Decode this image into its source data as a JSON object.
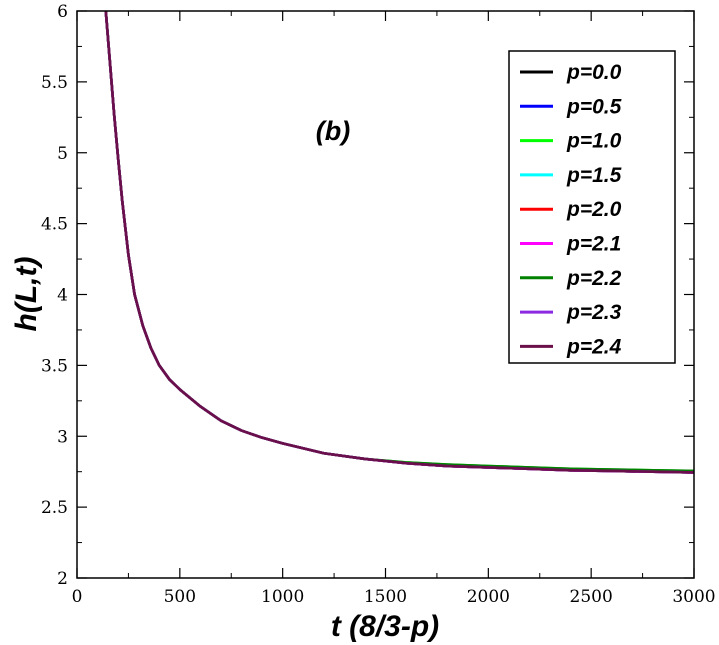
{
  "chart_data": {
    "type": "line",
    "title": "",
    "xlabel": "t (8/3-p)",
    "ylabel": "h(L,t)",
    "xlim": [
      0,
      3000
    ],
    "ylim": [
      2,
      6
    ],
    "xticks": [
      "0",
      "500",
      "1000",
      "1500",
      "2000",
      "2500",
      "3000"
    ],
    "yticks": [
      "2",
      "2.5",
      "3",
      "3.5",
      "4",
      "4.5",
      "5",
      "5.5",
      "6"
    ],
    "grid": false,
    "legend_position": "top-right",
    "annotation": "(b)",
    "x": [
      140,
      160,
      180,
      200,
      220,
      250,
      280,
      320,
      360,
      400,
      450,
      500,
      550,
      600,
      700,
      800,
      900,
      1000,
      1200,
      1400,
      1600,
      1800,
      2000,
      2200,
      2400,
      2600,
      2800,
      3000
    ],
    "series": [
      {
        "name": "p=0.0",
        "color": "#000000",
        "values": [
          6.02,
          5.64,
          5.28,
          4.96,
          4.66,
          4.28,
          4.0,
          3.78,
          3.62,
          3.5,
          3.4,
          3.33,
          3.27,
          3.21,
          3.11,
          3.04,
          2.99,
          2.95,
          2.88,
          2.84,
          2.81,
          2.79,
          2.78,
          2.77,
          2.76,
          2.755,
          2.75,
          2.745
        ]
      },
      {
        "name": "p=0.5",
        "color": "#0000ff",
        "values": [
          6.02,
          5.64,
          5.28,
          4.96,
          4.66,
          4.28,
          4.0,
          3.78,
          3.62,
          3.5,
          3.4,
          3.33,
          3.27,
          3.21,
          3.11,
          3.04,
          2.99,
          2.95,
          2.88,
          2.84,
          2.81,
          2.79,
          2.78,
          2.77,
          2.76,
          2.755,
          2.75,
          2.745
        ]
      },
      {
        "name": "p=1.0",
        "color": "#00ff00",
        "values": [
          6.02,
          5.64,
          5.28,
          4.96,
          4.66,
          4.28,
          4.0,
          3.78,
          3.62,
          3.5,
          3.4,
          3.33,
          3.27,
          3.21,
          3.11,
          3.04,
          2.99,
          2.95,
          2.88,
          2.84,
          2.815,
          2.8,
          2.79,
          2.78,
          2.77,
          2.765,
          2.76,
          2.755
        ]
      },
      {
        "name": "p=1.5",
        "color": "#00ffff",
        "values": [
          6.02,
          5.64,
          5.28,
          4.96,
          4.66,
          4.28,
          4.0,
          3.78,
          3.62,
          3.5,
          3.4,
          3.33,
          3.27,
          3.21,
          3.11,
          3.04,
          2.99,
          2.95,
          2.88,
          2.84,
          2.81,
          2.79,
          2.78,
          2.77,
          2.76,
          2.755,
          2.75,
          2.745
        ]
      },
      {
        "name": "p=2.0",
        "color": "#ff0000",
        "values": [
          6.02,
          5.64,
          5.28,
          4.96,
          4.66,
          4.28,
          4.0,
          3.78,
          3.62,
          3.5,
          3.4,
          3.33,
          3.27,
          3.21,
          3.11,
          3.04,
          2.99,
          2.95,
          2.88,
          2.84,
          2.81,
          2.79,
          2.78,
          2.77,
          2.76,
          2.755,
          2.75,
          2.745
        ]
      },
      {
        "name": "p=2.1",
        "color": "#ff00ff",
        "values": [
          6.02,
          5.64,
          5.28,
          4.96,
          4.66,
          4.28,
          4.0,
          3.78,
          3.62,
          3.5,
          3.4,
          3.33,
          3.27,
          3.21,
          3.11,
          3.04,
          2.99,
          2.95,
          2.88,
          2.84,
          2.81,
          2.79,
          2.78,
          2.77,
          2.76,
          2.755,
          2.75,
          2.745
        ]
      },
      {
        "name": "p=2.2",
        "color": "#008000",
        "values": [
          6.02,
          5.64,
          5.28,
          4.96,
          4.66,
          4.28,
          4.0,
          3.78,
          3.62,
          3.5,
          3.4,
          3.33,
          3.27,
          3.21,
          3.11,
          3.04,
          2.99,
          2.95,
          2.88,
          2.84,
          2.815,
          2.8,
          2.79,
          2.78,
          2.77,
          2.765,
          2.76,
          2.755
        ]
      },
      {
        "name": "p=2.3",
        "color": "#8a2be2",
        "values": [
          6.02,
          5.64,
          5.28,
          4.96,
          4.66,
          4.28,
          4.0,
          3.78,
          3.62,
          3.5,
          3.4,
          3.33,
          3.27,
          3.21,
          3.11,
          3.04,
          2.99,
          2.95,
          2.88,
          2.84,
          2.81,
          2.79,
          2.78,
          2.77,
          2.76,
          2.755,
          2.75,
          2.745
        ]
      },
      {
        "name": "p=2.4",
        "color": "#6b0f4a",
        "values": [
          6.02,
          5.64,
          5.28,
          4.96,
          4.66,
          4.28,
          4.0,
          3.78,
          3.62,
          3.5,
          3.4,
          3.33,
          3.27,
          3.21,
          3.11,
          3.04,
          2.99,
          2.95,
          2.88,
          2.84,
          2.81,
          2.79,
          2.78,
          2.77,
          2.76,
          2.755,
          2.75,
          2.745
        ]
      }
    ]
  }
}
